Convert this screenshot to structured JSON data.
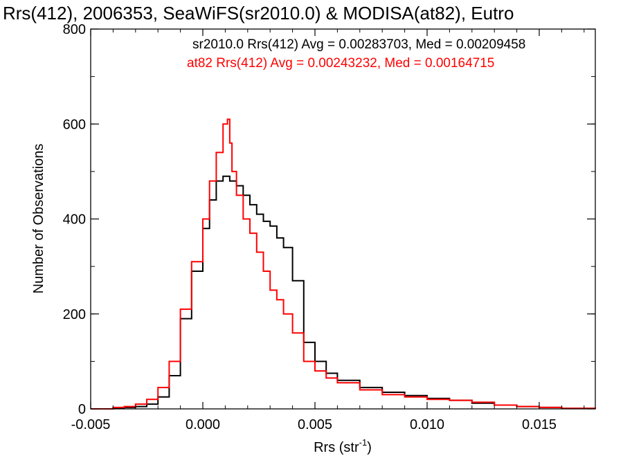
{
  "chart_data": {
    "type": "line",
    "title": "Rrs(412), 2006353, SeaWiFS(sr2010.0) & MODISA(at82), Eutro",
    "xlabel": "Rrs (str",
    "xlabel_sup": "-1",
    "xlabel_close": ")",
    "ylabel": "Number of Observations",
    "xlim": [
      -0.005,
      0.0175
    ],
    "ylim": [
      0,
      800
    ],
    "x_ticks": [
      -0.005,
      0.0,
      0.005,
      0.01,
      0.015
    ],
    "x_tick_labels": [
      "-0.005",
      "0.000",
      "0.005",
      "0.010",
      "0.015"
    ],
    "y_ticks": [
      0,
      200,
      400,
      600,
      800
    ],
    "y_tick_labels": [
      "0",
      "200",
      "400",
      "600",
      "800"
    ],
    "grid": false,
    "legend_position": "top",
    "legend": [
      "sr2010.0 Rrs(412) Avg = 0.00283703, Med = 0.00209458",
      "at82 Rrs(412) Avg = 0.00243232, Med = 0.00164715"
    ],
    "series": [
      {
        "color": "#000000",
        "x": [
          -0.005,
          -0.004,
          -0.0035,
          -0.003,
          -0.0025,
          -0.002,
          -0.0015,
          -0.001,
          -0.0005,
          0.0,
          0.0003,
          0.0006,
          0.0009,
          0.0012,
          0.0015,
          0.0018,
          0.0021,
          0.0024,
          0.0027,
          0.003,
          0.0033,
          0.0036,
          0.004,
          0.0045,
          0.005,
          0.0055,
          0.006,
          0.007,
          0.008,
          0.009,
          0.01,
          0.011,
          0.012,
          0.013,
          0.014,
          0.015,
          0.016,
          0.0175
        ],
        "values": [
          0,
          2,
          3,
          5,
          10,
          25,
          70,
          190,
          290,
          380,
          440,
          480,
          490,
          480,
          470,
          450,
          430,
          410,
          395,
          385,
          360,
          340,
          270,
          140,
          100,
          75,
          60,
          45,
          35,
          28,
          22,
          18,
          12,
          8,
          5,
          3,
          1,
          0
        ]
      },
      {
        "color": "#ff0000",
        "x": [
          -0.005,
          -0.004,
          -0.0035,
          -0.003,
          -0.0025,
          -0.002,
          -0.0015,
          -0.001,
          -0.0005,
          0.0,
          0.0003,
          0.0006,
          0.0009,
          0.0011,
          0.0012,
          0.0013,
          0.0015,
          0.0018,
          0.0021,
          0.0024,
          0.0027,
          0.003,
          0.0033,
          0.0036,
          0.004,
          0.0045,
          0.005,
          0.0055,
          0.006,
          0.007,
          0.008,
          0.009,
          0.01,
          0.011,
          0.012,
          0.013,
          0.014,
          0.015,
          0.016,
          0.0175
        ],
        "values": [
          0,
          3,
          5,
          10,
          20,
          45,
          100,
          210,
          310,
          400,
          480,
          540,
          600,
          610,
          560,
          500,
          450,
          400,
          370,
          330,
          290,
          250,
          230,
          200,
          160,
          100,
          80,
          65,
          55,
          40,
          30,
          25,
          20,
          18,
          14,
          8,
          5,
          3,
          1,
          0
        ]
      }
    ]
  }
}
